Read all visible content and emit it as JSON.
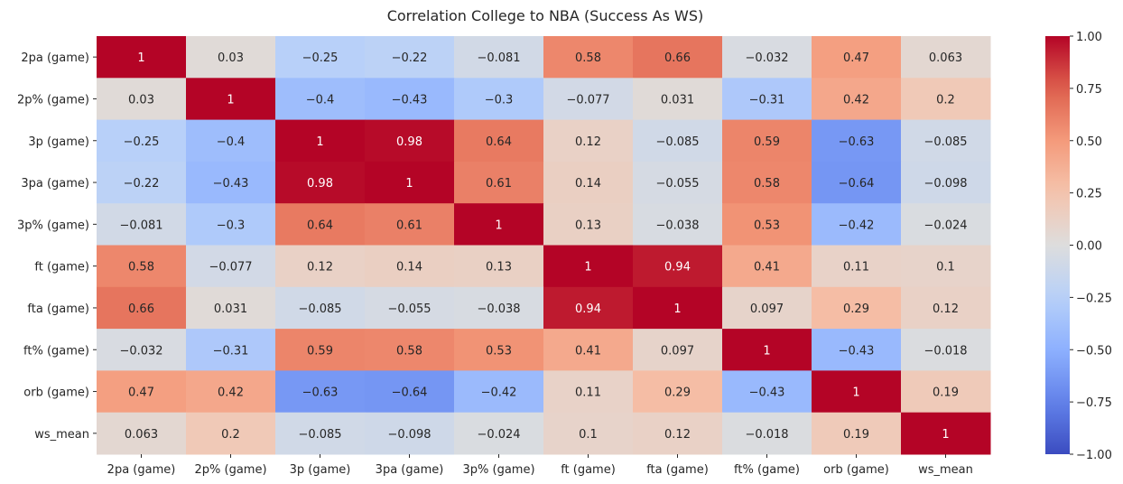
{
  "chart_data": {
    "type": "heatmap",
    "title": "Correlation College to NBA (Success As WS)",
    "xlabel": "",
    "ylabel": "",
    "colormap": "coolwarm",
    "vmin": -1,
    "vmax": 1,
    "x_labels": [
      "2pa (game)",
      "2p% (game)",
      "3p (game)",
      "3pa (game)",
      "3p% (game)",
      "ft (game)",
      "fta (game)",
      "ft% (game)",
      "orb (game)",
      "ws_mean"
    ],
    "y_labels": [
      "2pa (game)",
      "2p% (game)",
      "3p (game)",
      "3pa (game)",
      "3p% (game)",
      "ft (game)",
      "fta (game)",
      "ft% (game)",
      "orb (game)",
      "ws_mean"
    ],
    "values": [
      [
        1,
        0.03,
        -0.25,
        -0.22,
        -0.081,
        0.58,
        0.66,
        -0.032,
        0.47,
        0.063
      ],
      [
        0.03,
        1,
        -0.4,
        -0.43,
        -0.3,
        -0.077,
        0.031,
        -0.31,
        0.42,
        0.2
      ],
      [
        -0.25,
        -0.4,
        1,
        0.98,
        0.64,
        0.12,
        -0.085,
        0.59,
        -0.63,
        -0.085
      ],
      [
        -0.22,
        -0.43,
        0.98,
        1,
        0.61,
        0.14,
        -0.055,
        0.58,
        -0.64,
        -0.098
      ],
      [
        -0.081,
        -0.3,
        0.64,
        0.61,
        1,
        0.13,
        -0.038,
        0.53,
        -0.42,
        -0.024
      ],
      [
        0.58,
        -0.077,
        0.12,
        0.14,
        0.13,
        1,
        0.94,
        0.41,
        0.11,
        0.1
      ],
      [
        0.66,
        0.031,
        -0.085,
        -0.055,
        -0.038,
        0.94,
        1,
        0.097,
        0.29,
        0.12
      ],
      [
        -0.032,
        -0.31,
        0.59,
        0.58,
        0.53,
        0.41,
        0.097,
        1,
        -0.43,
        -0.018
      ],
      [
        0.47,
        0.42,
        -0.63,
        -0.64,
        -0.42,
        0.11,
        0.29,
        -0.43,
        1,
        0.19
      ],
      [
        0.063,
        0.2,
        -0.085,
        -0.098,
        -0.024,
        0.1,
        0.12,
        -0.018,
        0.19,
        1
      ]
    ],
    "colorbar_ticks": [
      "1.00",
      "0.75",
      "0.50",
      "0.25",
      "0.00",
      "−0.25",
      "−0.50",
      "−0.75",
      "−1.00"
    ],
    "legend": "colorbar-right",
    "grid": false
  }
}
